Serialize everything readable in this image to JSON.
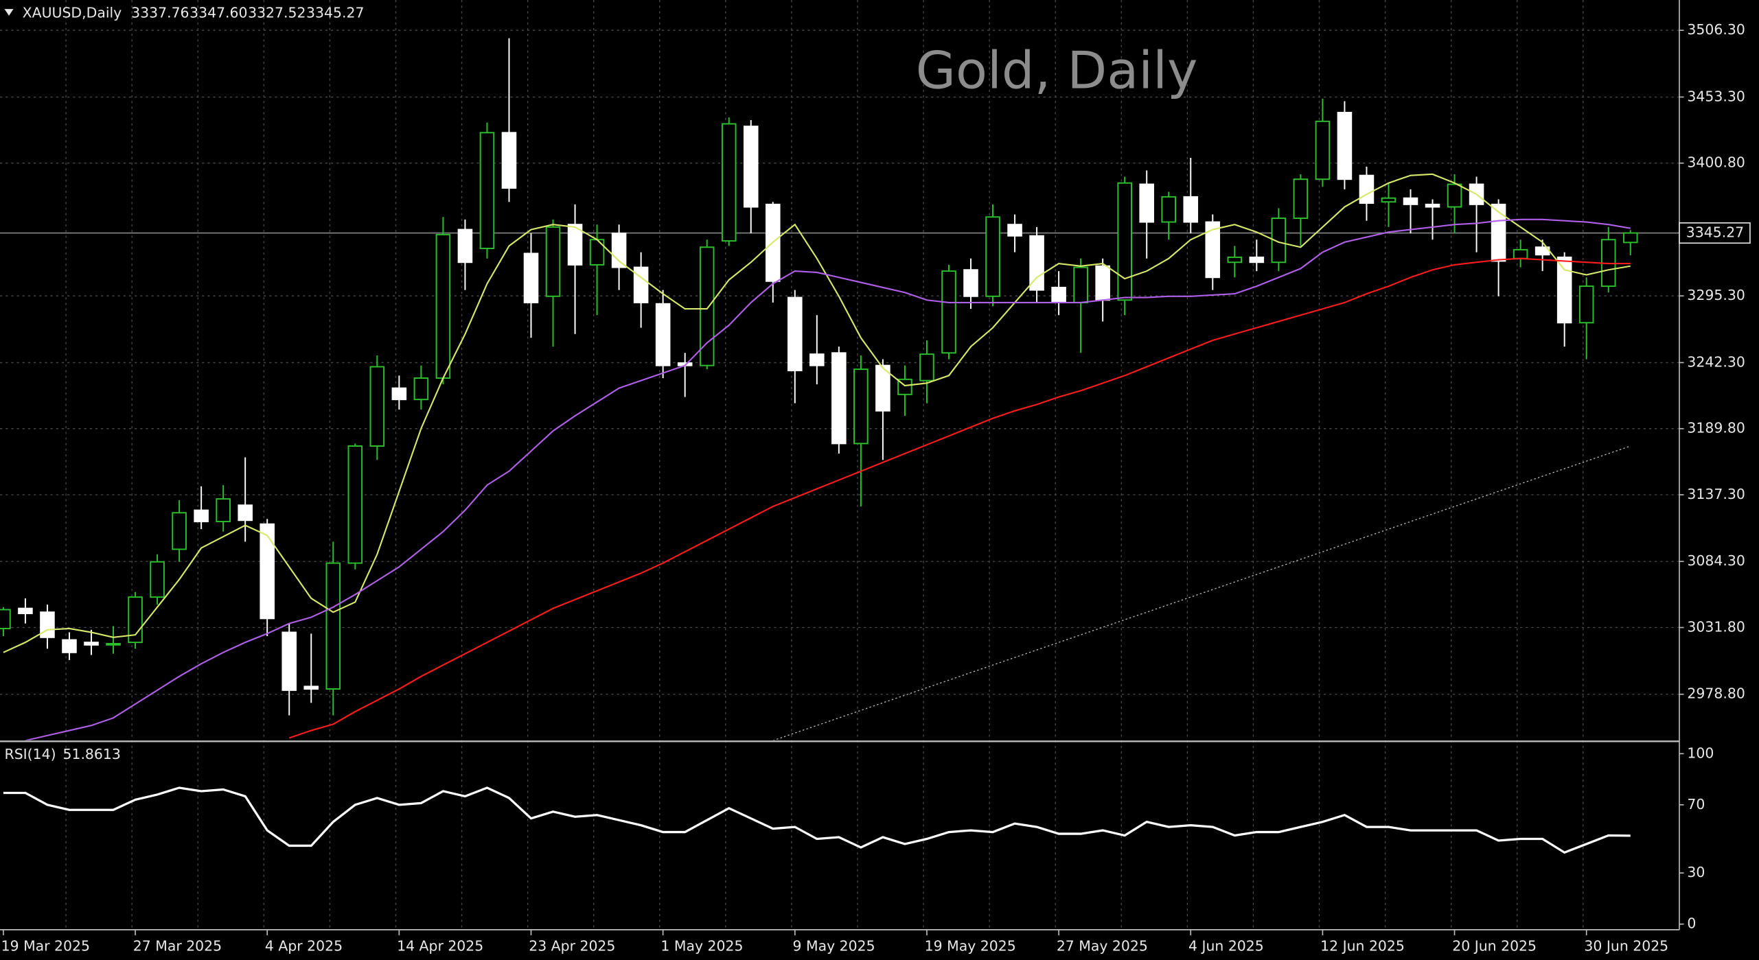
{
  "chart_data": {
    "type": "candlestick",
    "symbol": "XAUUSD,Daily",
    "header_ohlc": [
      "3337.76",
      "3347.60",
      "3327.52",
      "3345.27"
    ],
    "title": "Gold, Daily",
    "categories": [
      "19 Mar 2025",
      null,
      null,
      null,
      null,
      null,
      "27 Mar 2025",
      null,
      null,
      null,
      null,
      null,
      "4 Apr 2025",
      null,
      null,
      null,
      null,
      null,
      "14 Apr 2025",
      null,
      null,
      null,
      null,
      null,
      "23 Apr 2025",
      null,
      null,
      null,
      null,
      null,
      "1 May 2025",
      null,
      null,
      null,
      null,
      null,
      "9 May 2025",
      null,
      null,
      null,
      null,
      null,
      "19 May 2025",
      null,
      null,
      null,
      null,
      null,
      "27 May 2025",
      null,
      null,
      null,
      null,
      null,
      "4 Jun 2025",
      null,
      null,
      null,
      null,
      null,
      "12 Jun 2025",
      null,
      null,
      null,
      null,
      null,
      "20 Jun 2025",
      null,
      null,
      null,
      null,
      null,
      "30 Jun 2025",
      null,
      null
    ],
    "candles": {
      "bull_color": "#2bbf2b",
      "bear_color": "#ffffff",
      "open": [
        3031,
        3047,
        3044,
        3022,
        3020,
        3018,
        3020,
        3056,
        3094,
        3125,
        3116,
        3129,
        3114,
        3028,
        2985,
        2983,
        3083,
        3176,
        3222,
        3213,
        3230,
        3348,
        3333,
        3425,
        3329,
        3295,
        3352,
        3320,
        3345,
        3318,
        3289,
        3242,
        3240,
        3339,
        3430,
        3368,
        3294,
        3249,
        3250,
        3178,
        3240,
        3217,
        3228,
        3250,
        3316,
        3295,
        3352,
        3343,
        3302,
        3290,
        3319,
        3292,
        3384,
        3354,
        3374,
        3354,
        3322,
        3326,
        3322,
        3357,
        3388,
        3441,
        3391,
        3370,
        3373,
        3368,
        3366,
        3384,
        3368,
        3325,
        3334,
        3326,
        3274,
        3303,
        3337.76
      ],
      "high": [
        3048,
        3055,
        3050,
        3028,
        3030,
        3033,
        3060,
        3090,
        3133,
        3144,
        3145,
        3167,
        3118,
        3035,
        3027,
        3100,
        3178,
        3248,
        3232,
        3240,
        3358,
        3356,
        3433,
        3500,
        3345,
        3356,
        3368,
        3352,
        3352,
        3330,
        3300,
        3250,
        3340,
        3437,
        3435,
        3370,
        3300,
        3280,
        3255,
        3248,
        3245,
        3240,
        3260,
        3320,
        3325,
        3368,
        3360,
        3350,
        3315,
        3325,
        3325,
        3390,
        3395,
        3378,
        3405,
        3360,
        3335,
        3340,
        3365,
        3392,
        3452,
        3450,
        3398,
        3385,
        3380,
        3372,
        3392,
        3390,
        3372,
        3340,
        3340,
        3330,
        3310,
        3350,
        3347.6
      ],
      "low": [
        3025,
        3035,
        3015,
        3006,
        3010,
        3011,
        3015,
        3050,
        3084,
        3110,
        3108,
        3100,
        3025,
        2962,
        2972,
        2962,
        3078,
        3165,
        3205,
        3205,
        3225,
        3300,
        3325,
        3370,
        3262,
        3255,
        3265,
        3280,
        3300,
        3270,
        3230,
        3215,
        3237,
        3335,
        3345,
        3290,
        3210,
        3225,
        3170,
        3128,
        3165,
        3200,
        3210,
        3245,
        3285,
        3287,
        3330,
        3290,
        3280,
        3250,
        3275,
        3280,
        3325,
        3340,
        3345,
        3300,
        3310,
        3315,
        3315,
        3335,
        3382,
        3380,
        3355,
        3350,
        3345,
        3340,
        3345,
        3330,
        3295,
        3318,
        3315,
        3255,
        3245,
        3298,
        3327.52
      ],
      "close": [
        3046,
        3043,
        3024,
        3012,
        3018,
        3019,
        3056,
        3084,
        3123,
        3116,
        3134,
        3117,
        3039,
        2982,
        2983,
        3083,
        3176,
        3239,
        3213,
        3230,
        3344,
        3322,
        3425,
        3381,
        3290,
        3350,
        3320,
        3340,
        3318,
        3290,
        3240,
        3240,
        3334,
        3432,
        3366,
        3307,
        3236,
        3240,
        3178,
        3237,
        3204,
        3229,
        3249,
        3315,
        3295,
        3358,
        3343,
        3300,
        3290,
        3318,
        3292,
        3385,
        3354,
        3374,
        3354,
        3310,
        3326,
        3322,
        3357,
        3388,
        3434,
        3388,
        3369,
        3373,
        3368,
        3366,
        3384,
        3368,
        3323,
        3332,
        3328,
        3274,
        3303,
        3340,
        3345.27
      ]
    },
    "lines": [
      {
        "color": "#d8e86a",
        "values": [
          3012,
          3020,
          3030,
          3031,
          3028,
          3024,
          3026,
          3048,
          3070,
          3095,
          3104,
          3113,
          3105,
          3080,
          3055,
          3044,
          3052,
          3090,
          3140,
          3190,
          3230,
          3265,
          3305,
          3335,
          3348,
          3352,
          3350,
          3340,
          3323,
          3310,
          3297,
          3285,
          3285,
          3308,
          3322,
          3338,
          3352,
          3325,
          3295,
          3262,
          3238,
          3224,
          3226,
          3232,
          3255,
          3270,
          3290,
          3310,
          3321,
          3319,
          3321,
          3309,
          3315,
          3325,
          3340,
          3348,
          3352,
          3346,
          3338,
          3334,
          3350,
          3366,
          3376,
          3385,
          3391,
          3392,
          3385,
          3376,
          3362,
          3350,
          3338,
          3316,
          3312,
          3316,
          3319
        ]
      },
      {
        "color": "#b060e8",
        "values": [
          null,
          2942,
          2946,
          2950,
          2954,
          2960,
          2971,
          2982,
          2993,
          3003,
          3012,
          3020,
          3027,
          3035,
          3040,
          3048,
          3058,
          3069,
          3080,
          3094,
          3108,
          3125,
          3145,
          3156,
          3172,
          3188,
          3200,
          3211,
          3222,
          3228,
          3234,
          3240,
          3258,
          3272,
          3290,
          3305,
          3315,
          3314,
          3310,
          3306,
          3302,
          3298,
          3292,
          3290,
          3290,
          3290,
          3290,
          3290,
          3290,
          3290,
          3292,
          3294,
          3294,
          3295,
          3295,
          3296,
          3297,
          3303,
          3310,
          3317,
          3330,
          3338,
          3342,
          3346,
          3348,
          3350,
          3352,
          3353,
          3355,
          3356,
          3356,
          3355,
          3354,
          3352,
          3349
        ]
      },
      {
        "color": "#ff1c1c",
        "values": [
          null,
          null,
          null,
          null,
          null,
          null,
          null,
          null,
          null,
          null,
          null,
          null,
          null,
          2944,
          2950,
          2955,
          2965,
          2974,
          2983,
          2993,
          3002,
          3011,
          3020,
          3029,
          3038,
          3047,
          3054,
          3061,
          3068,
          3075,
          3083,
          3092,
          3101,
          3110,
          3119,
          3128,
          3135,
          3142,
          3149,
          3156,
          3163,
          3170,
          3177,
          3184,
          3191,
          3198,
          3204,
          3209,
          3215,
          3220,
          3226,
          3232,
          3239,
          3246,
          3253,
          3260,
          3265,
          3270,
          3275,
          3280,
          3285,
          3290,
          3297,
          3303,
          3310,
          3316,
          3320,
          3322,
          3324,
          3325,
          3324,
          3323,
          3322,
          3321,
          3321
        ]
      },
      {
        "color": "#bbbbbb",
        "dotted": true,
        "values": [
          null,
          null,
          null,
          null,
          null,
          null,
          null,
          null,
          null,
          null,
          null,
          null,
          null,
          null,
          null,
          null,
          null,
          null,
          null,
          null,
          null,
          null,
          null,
          null,
          null,
          null,
          null,
          null,
          null,
          null,
          null,
          null,
          null,
          null,
          null,
          2942,
          2948,
          2954,
          2960,
          2966,
          2972,
          2978,
          2984,
          2990,
          2996,
          3002,
          3008,
          3014,
          3020,
          3026,
          3032,
          3038,
          3044,
          3050,
          3056,
          3062,
          3068,
          3074,
          3080,
          3086,
          3092,
          3098,
          3104,
          3110,
          3116,
          3122,
          3128,
          3134,
          3140,
          3146,
          3152,
          3158,
          3164,
          3170,
          3176
        ]
      }
    ],
    "ylim": [
      2942.3,
      3530.4
    ],
    "yticks": [
      {
        "value": 2978.8,
        "label": "2978.80"
      },
      {
        "value": 3031.8,
        "label": "3031.80"
      },
      {
        "value": 3084.3,
        "label": "3084.30"
      },
      {
        "value": 3137.3,
        "label": "3137.30"
      },
      {
        "value": 3189.8,
        "label": "3189.80"
      },
      {
        "value": 3242.3,
        "label": "3242.30"
      },
      {
        "value": 3295.3,
        "label": "3295.30"
      },
      {
        "value": 3400.8,
        "label": "3400.80"
      },
      {
        "value": 3453.3,
        "label": "3453.30"
      },
      {
        "value": 3506.3,
        "label": "3506.30"
      }
    ],
    "price_tag": {
      "value": 3345.27,
      "label": "3345.27"
    },
    "grid": true,
    "rsi": {
      "label": "RSI(14)",
      "color": "#ffffff",
      "values": [
        77,
        77,
        70,
        67,
        67,
        67,
        73,
        76,
        80,
        78,
        79,
        75,
        55,
        46,
        46,
        60,
        70,
        74,
        70,
        71,
        78,
        75,
        80,
        74,
        62,
        66,
        63,
        64,
        61,
        58,
        54,
        54,
        61,
        68,
        62,
        56,
        57,
        50,
        51,
        45,
        51,
        47,
        50,
        54,
        55,
        54,
        59,
        57,
        53,
        53,
        55,
        52,
        60,
        57,
        58,
        57,
        52,
        54,
        54,
        57,
        60,
        64,
        57,
        57,
        55,
        55,
        55,
        55,
        49,
        50,
        50,
        42,
        47,
        52,
        51.8613
      ],
      "ylim": [
        -3.3,
        106.6
      ],
      "yticks": [
        0,
        30,
        70,
        100
      ]
    }
  }
}
